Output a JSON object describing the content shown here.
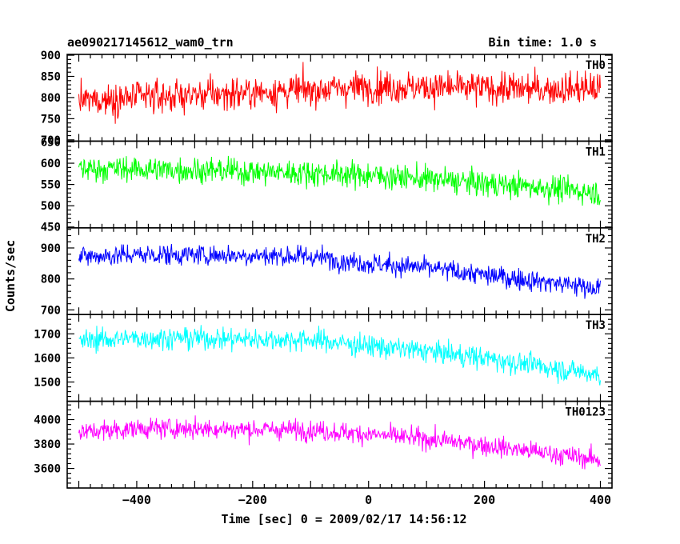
{
  "header": {
    "obs_id": "ae090217145612_wam0_trn",
    "bin_time": "Bin time: 1.0 s"
  },
  "chart_data": {
    "type": "line",
    "title": "ae090217145612_wam0_trn",
    "subtitle": "Bin time: 1.0 s",
    "xlabel": "Time [sec] 0 = 2009/02/17 14:56:12",
    "ylabel": "Counts/sec",
    "xlim": [
      -520,
      420
    ],
    "xticks": [
      -400,
      -200,
      0,
      200,
      400
    ],
    "x_range": [
      -500,
      400
    ],
    "x_step": 1,
    "grid": false,
    "panels": [
      {
        "name": "TH0",
        "color": "#ff0000",
        "ylim": [
          697,
          902
        ],
        "yticks": [
          700,
          750,
          800,
          850,
          900
        ],
        "trend": [
          [
            -500,
            792
          ],
          [
            -400,
            800
          ],
          [
            -300,
            806
          ],
          [
            -200,
            812
          ],
          [
            -100,
            818
          ],
          [
            0,
            826
          ],
          [
            100,
            824
          ],
          [
            200,
            822
          ],
          [
            300,
            820
          ],
          [
            400,
            822
          ]
        ],
        "noise_sd": 38
      },
      {
        "name": "TH1",
        "color": "#00ff00",
        "ylim": [
          448,
          652
        ],
        "yticks": [
          450,
          500,
          550,
          600,
          650
        ],
        "trend": [
          [
            -500,
            588
          ],
          [
            -400,
            586
          ],
          [
            -300,
            584
          ],
          [
            -200,
            580
          ],
          [
            -100,
            577
          ],
          [
            0,
            572
          ],
          [
            100,
            563
          ],
          [
            200,
            552
          ],
          [
            300,
            543
          ],
          [
            400,
            530
          ]
        ],
        "noise_sd": 30
      },
      {
        "name": "TH2",
        "color": "#0000ff",
        "ylim": [
          685,
          965
        ],
        "yticks": [
          700,
          800,
          900
        ],
        "trend": [
          [
            -500,
            872
          ],
          [
            -400,
            878
          ],
          [
            -300,
            878
          ],
          [
            -200,
            876
          ],
          [
            -100,
            872
          ],
          [
            0,
            850
          ],
          [
            100,
            836
          ],
          [
            200,
            812
          ],
          [
            300,
            792
          ],
          [
            400,
            770
          ]
        ],
        "noise_sd": 34
      },
      {
        "name": "TH3",
        "color": "#00ffff",
        "ylim": [
          1420,
          1780
        ],
        "yticks": [
          1500,
          1600,
          1700
        ],
        "trend": [
          [
            -500,
            1672
          ],
          [
            -400,
            1682
          ],
          [
            -300,
            1682
          ],
          [
            -200,
            1678
          ],
          [
            -100,
            1675
          ],
          [
            0,
            1650
          ],
          [
            100,
            1628
          ],
          [
            200,
            1600
          ],
          [
            300,
            1565
          ],
          [
            400,
            1530
          ]
        ],
        "noise_sd": 46
      },
      {
        "name": "TH0123",
        "color": "#ff00ff",
        "ylim": [
          3440,
          4150
        ],
        "yticks": [
          3600,
          3800,
          4000
        ],
        "trend": [
          [
            -500,
            3895
          ],
          [
            -400,
            3928
          ],
          [
            -300,
            3928
          ],
          [
            -200,
            3920
          ],
          [
            -100,
            3915
          ],
          [
            0,
            3880
          ],
          [
            100,
            3842
          ],
          [
            200,
            3790
          ],
          [
            300,
            3730
          ],
          [
            400,
            3670
          ]
        ],
        "noise_sd": 82
      }
    ]
  }
}
